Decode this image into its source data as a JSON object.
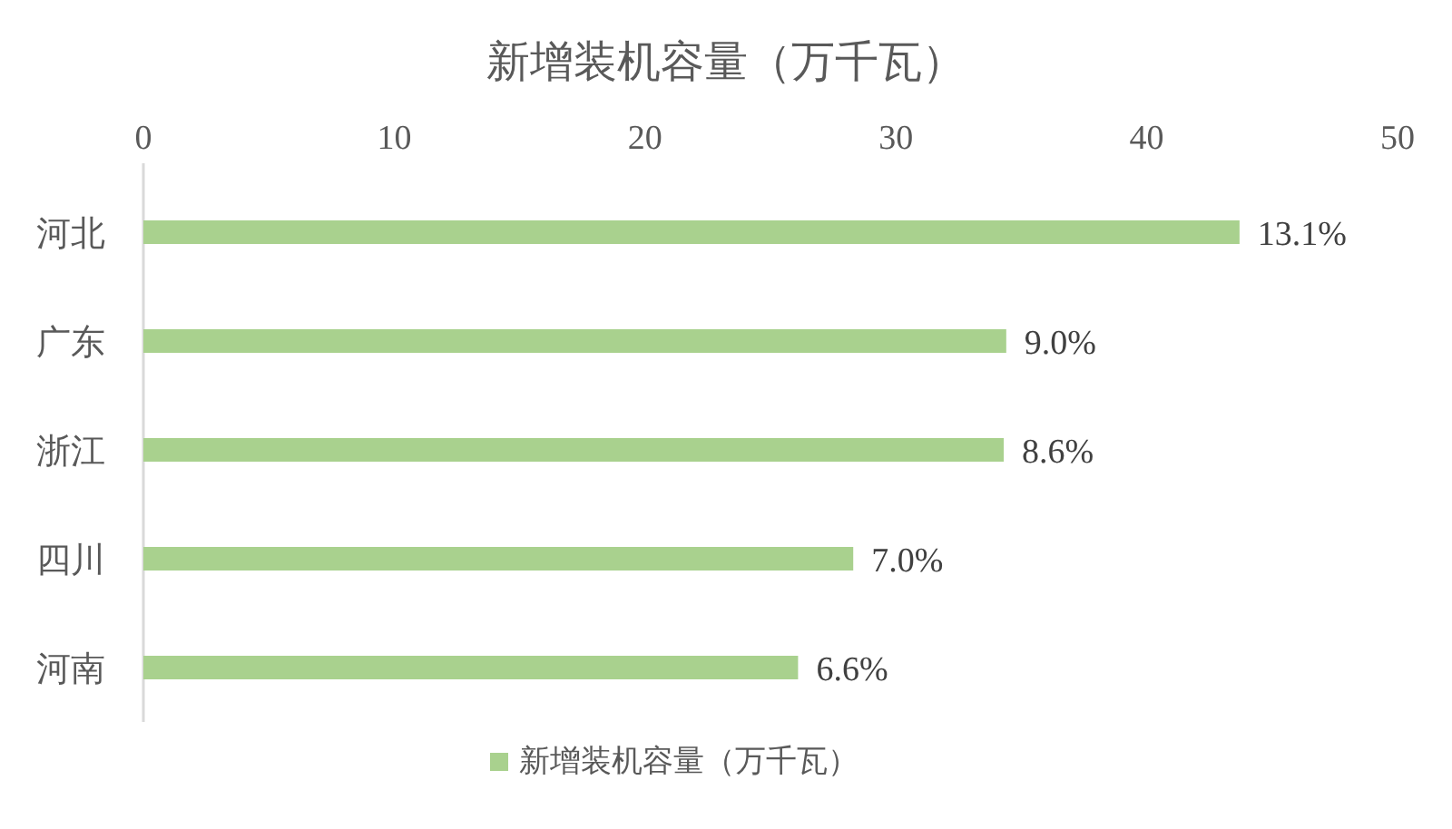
{
  "chart_data": {
    "type": "bar",
    "orientation": "horizontal",
    "title": "新增装机容量（万千瓦）",
    "categories": [
      "河北",
      "广东",
      "浙江",
      "四川",
      "河南"
    ],
    "series": [
      {
        "name": "新增装机容量（万千瓦）",
        "color": "#a9d18e",
        "values": [
          43.7,
          34.4,
          34.3,
          28.3,
          26.1
        ]
      }
    ],
    "annotations": [
      {
        "text": "13.1%",
        "x": 43.7,
        "y": "河北"
      },
      {
        "text": "9.0%",
        "x": 34.4,
        "y": "广东"
      },
      {
        "text": "8.6%",
        "x": 34.3,
        "y": "浙江"
      },
      {
        "text": "7.0%",
        "x": 28.3,
        "y": "四川"
      },
      {
        "text": "6.6%",
        "x": 26.1,
        "y": "河南"
      }
    ],
    "xlim": [
      0,
      50
    ],
    "xticks": [
      0,
      10,
      20,
      30,
      40,
      50
    ],
    "grid": false,
    "legend": "bottom"
  }
}
